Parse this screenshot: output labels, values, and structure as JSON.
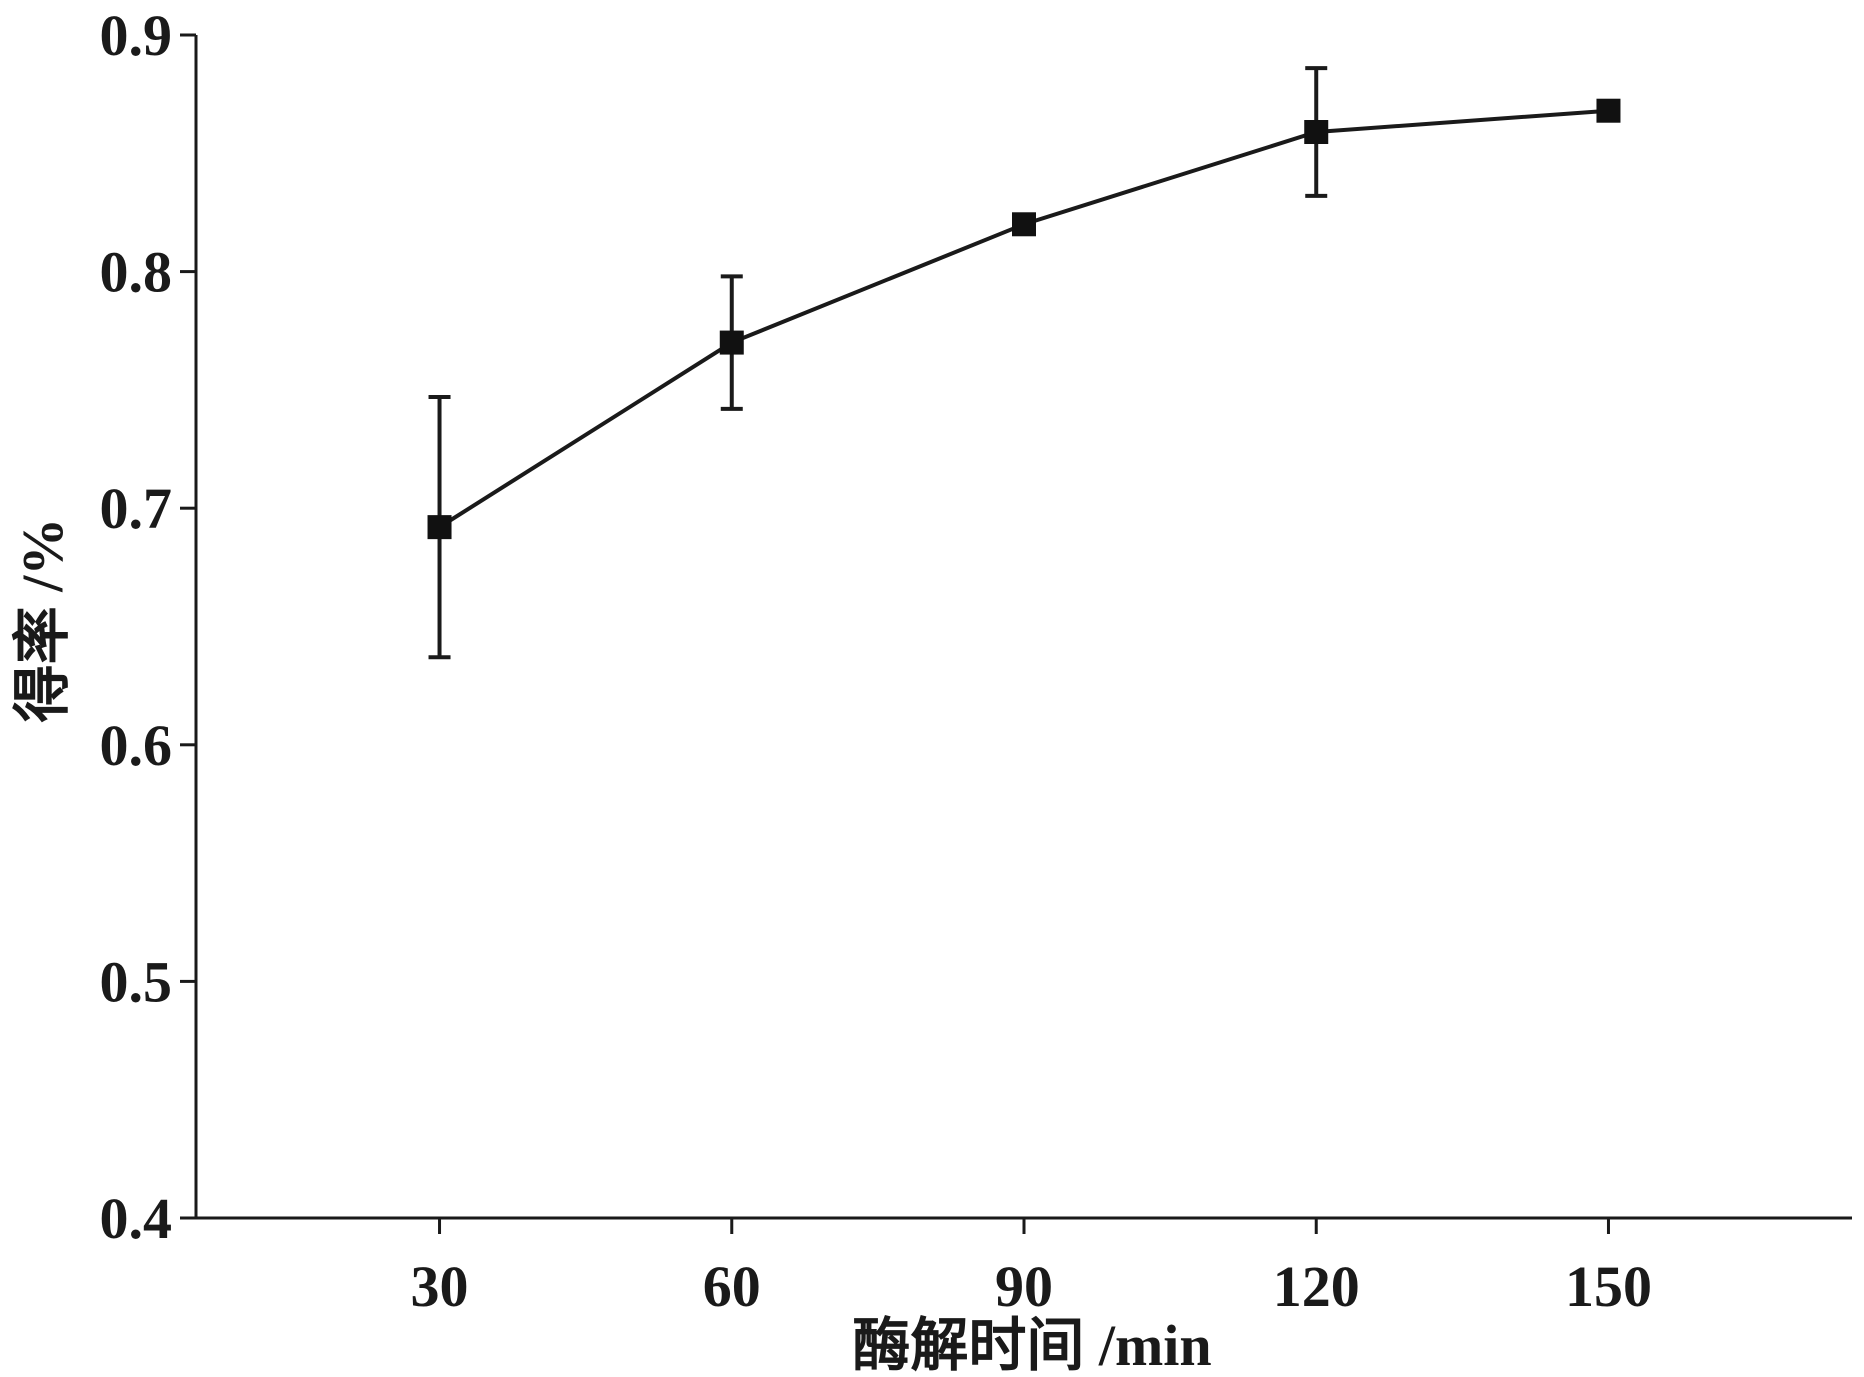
{
  "chart_data": {
    "type": "line",
    "title": "",
    "xlabel": "酶解时间 /min",
    "ylabel": "得率 /%",
    "xlim": [
      5,
      175
    ],
    "ylim": [
      0.4,
      0.9
    ],
    "xticks": [
      30,
      60,
      90,
      120,
      150
    ],
    "xtick_labels": [
      "30",
      "60",
      "90",
      "120",
      "150"
    ],
    "yticks": [
      0.4,
      0.5,
      0.6,
      0.7,
      0.8,
      0.9
    ],
    "ytick_labels": [
      "0.4",
      "0.5",
      "0.6",
      "0.7",
      "0.8",
      "0.9"
    ],
    "grid": false,
    "series": [
      {
        "marker": "square",
        "color": "#111111",
        "x": [
          30,
          60,
          90,
          120,
          150
        ],
        "y": [
          0.692,
          0.77,
          0.82,
          0.859,
          0.868
        ],
        "error": [
          0.055,
          0.028,
          0.0,
          0.027,
          0.0
        ]
      }
    ]
  }
}
